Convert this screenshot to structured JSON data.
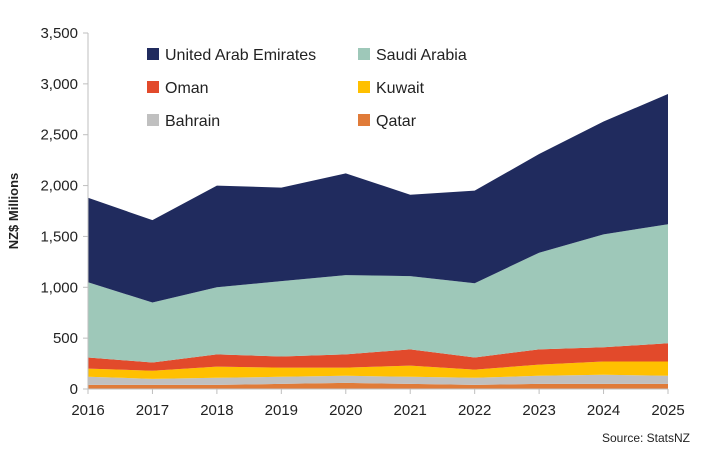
{
  "chart_data": {
    "type": "area",
    "stacked": true,
    "title": "",
    "xlabel": "",
    "ylabel": "NZ$ Millions",
    "source": "Source: StatsNZ",
    "x": [
      "2016",
      "2017",
      "2018",
      "2019",
      "2020",
      "2021",
      "2022",
      "2023",
      "2024",
      "2025"
    ],
    "ylim": [
      0,
      3500
    ],
    "yticks": [
      0,
      500,
      1000,
      1500,
      2000,
      2500,
      3000,
      3500
    ],
    "ytick_labels": [
      "0",
      "500",
      "1,000",
      "1,500",
      "2,000",
      "2,500",
      "3,000",
      "3,500"
    ],
    "grid": false,
    "legend_position": "top-left, inside plot, two columns",
    "series": [
      {
        "name": "Qatar",
        "color": "#e07b39",
        "values": [
          40,
          40,
          40,
          50,
          60,
          50,
          40,
          50,
          50,
          50
        ]
      },
      {
        "name": "Bahrain",
        "color": "#c0c0c0",
        "values": [
          80,
          60,
          70,
          70,
          70,
          70,
          70,
          80,
          90,
          80
        ]
      },
      {
        "name": "Kuwait",
        "color": "#ffc000",
        "values": [
          80,
          80,
          110,
          90,
          80,
          110,
          80,
          110,
          130,
          140
        ]
      },
      {
        "name": "Oman",
        "color": "#e24a2b",
        "values": [
          110,
          80,
          120,
          110,
          130,
          160,
          120,
          150,
          140,
          180
        ]
      },
      {
        "name": "Saudi Arabia",
        "color": "#9ec8b9",
        "values": [
          740,
          590,
          660,
          740,
          780,
          720,
          730,
          950,
          1110,
          1170
        ]
      },
      {
        "name": "United Arab Emirates",
        "color": "#202b5e",
        "values": [
          830,
          810,
          1000,
          920,
          1000,
          800,
          910,
          970,
          1110,
          1280
        ]
      }
    ],
    "legend_order": [
      "United Arab Emirates",
      "Saudi Arabia",
      "Oman",
      "Kuwait",
      "Bahrain",
      "Qatar"
    ]
  }
}
